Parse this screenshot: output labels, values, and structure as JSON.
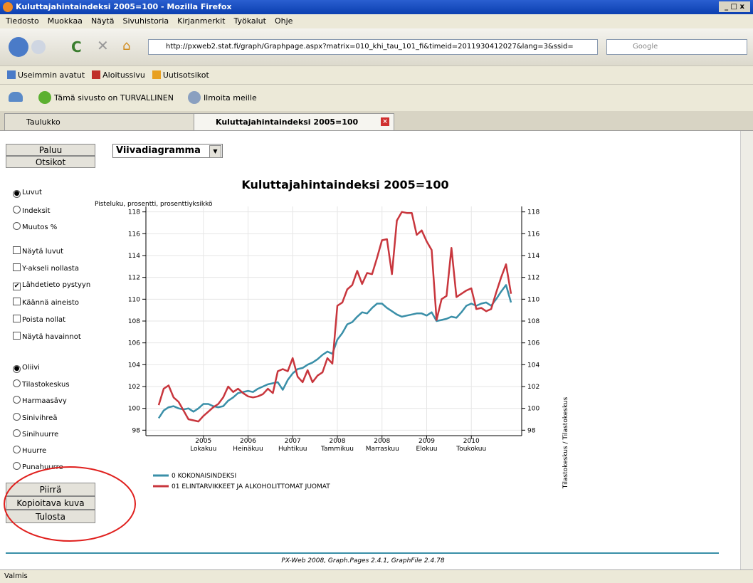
{
  "window": {
    "title": "Kuluttajahintaindeksi 2005=100 - Mozilla Firefox"
  },
  "menu": [
    "Tiedosto",
    "Muokkaa",
    "Näytä",
    "Sivuhistoria",
    "Kirjanmerkit",
    "Työkalut",
    "Ohje"
  ],
  "address": "http://pxweb2.stat.fi/graph/Graphpage.aspx?matrix=010_khi_tau_101_fi&timeid=2011930412027&lang=3&ssid=",
  "search_placeholder": "Google",
  "bookmarks": [
    "Useimmin avatut",
    "Aloitussivu",
    "Uutisotsikot"
  ],
  "toolbar": [
    "Tämä sivusto on TURVALLINEN",
    "Ilmoita meille"
  ],
  "tabs": [
    {
      "label": "Taulukko",
      "active": false
    },
    {
      "label": "Kuluttajahintaindeksi 2005=100",
      "active": true
    }
  ],
  "sidebar": {
    "top_buttons": [
      "Paluu",
      "Otsikot"
    ],
    "chart_type": "Viivadiagramma",
    "value_options": [
      {
        "label": "Luvut",
        "selected": true
      },
      {
        "label": "Indeksit",
        "selected": false
      },
      {
        "label": "Muutos %",
        "selected": false
      }
    ],
    "checkboxes": [
      {
        "label": "Näytä luvut",
        "checked": false
      },
      {
        "label": "Y-akseli nollasta",
        "checked": false
      },
      {
        "label": "Lähdetieto pystyyn",
        "checked": true
      },
      {
        "label": "Käännä aineisto",
        "checked": false
      },
      {
        "label": "Poista nollat",
        "checked": false
      },
      {
        "label": "Näytä havainnot",
        "checked": false
      }
    ],
    "color_options": [
      {
        "label": "Oliivi",
        "selected": true
      },
      {
        "label": "Tilastokeskus",
        "selected": false
      },
      {
        "label": "Harmaasävy",
        "selected": false
      },
      {
        "label": "Sinivihreä",
        "selected": false
      },
      {
        "label": "Sinihuurre",
        "selected": false
      },
      {
        "label": "Huurre",
        "selected": false
      },
      {
        "label": "Punahuurre",
        "selected": false
      }
    ],
    "bottom_buttons": [
      "Piirrä",
      "Kopioitava kuva",
      "Tulosta"
    ]
  },
  "chart_data": {
    "type": "line",
    "title": "Kuluttajahintaindeksi 2005=100",
    "y_label": "Pisteluku, prosentti, prosenttiyksikkö",
    "source_label": "Tilastokeskus / Tilastokeskus",
    "categories": [
      null,
      null,
      null,
      null,
      null,
      null,
      null,
      null,
      null,
      "2005 Lokakuu",
      null,
      null,
      null,
      null,
      null,
      null,
      null,
      null,
      "2006 Heinäkuu",
      null,
      null,
      null,
      null,
      null,
      null,
      null,
      null,
      "2007 Huhtikuu",
      null,
      null,
      null,
      null,
      null,
      null,
      null,
      null,
      "2008 Tammikuu",
      null,
      null,
      null,
      null,
      null,
      null,
      null,
      null,
      "2008 Marraskuu",
      null,
      null,
      null,
      null,
      null,
      null,
      null,
      null,
      "2009 Elokuu",
      null,
      null,
      null,
      null,
      null,
      null,
      null,
      null,
      "2010 Toukokuu",
      null,
      null,
      null,
      null,
      null,
      null,
      null,
      null
    ],
    "series": [
      {
        "name": "0 KOKONAISINDEKSI",
        "color": "#3a8fa8",
        "values": [
          99.1,
          99.8,
          100.1,
          100.2,
          100.0,
          99.9,
          100.0,
          99.7,
          100.0,
          100.4,
          100.4,
          100.2,
          100.1,
          100.2,
          100.7,
          101.0,
          101.4,
          101.5,
          101.6,
          101.5,
          101.8,
          102.0,
          102.2,
          102.3,
          102.4,
          101.7,
          102.6,
          103.2,
          103.6,
          103.7,
          104.0,
          104.2,
          104.5,
          104.9,
          105.2,
          105.0,
          106.3,
          106.9,
          107.7,
          107.9,
          108.4,
          108.8,
          108.7,
          109.2,
          109.6,
          109.6,
          109.2,
          108.9,
          108.6,
          108.4,
          108.5,
          108.6,
          108.7,
          108.7,
          108.5,
          108.8,
          108.0,
          108.1,
          108.2,
          108.4,
          108.3,
          108.8,
          109.4,
          109.6,
          109.4,
          109.6,
          109.7,
          109.4,
          110.0,
          110.7,
          111.3,
          109.7
        ]
      },
      {
        "name": "01 ELINTARVIKKEET JA ALKOHOLITTOMAT JUOMAT",
        "color": "#c8363d",
        "values": [
          100.3,
          101.8,
          102.1,
          101.0,
          100.6,
          99.8,
          99.0,
          98.9,
          98.8,
          99.3,
          99.7,
          100.1,
          100.4,
          101.0,
          102.0,
          101.5,
          101.8,
          101.4,
          101.1,
          101.0,
          101.1,
          101.3,
          101.8,
          101.4,
          103.4,
          103.6,
          103.4,
          104.6,
          102.9,
          102.4,
          103.5,
          102.4,
          103.0,
          103.3,
          104.6,
          104.1,
          109.4,
          109.7,
          110.9,
          111.3,
          112.6,
          111.4,
          112.4,
          112.3,
          113.8,
          115.4,
          115.5,
          112.3,
          117.2,
          118.0,
          117.9,
          117.9,
          115.9,
          116.3,
          115.3,
          114.5,
          108.1,
          110.0,
          110.3,
          114.7,
          110.2,
          110.5,
          110.8,
          111.0,
          109.1,
          109.2,
          108.9,
          109.1,
          110.6,
          112.0,
          113.2,
          110.5
        ]
      }
    ],
    "ylim": [
      97.5,
      118.5
    ],
    "yticks": [
      98,
      100,
      102,
      104,
      106,
      108,
      110,
      112,
      114,
      116,
      118
    ],
    "grid": true,
    "legend": "bottom-left"
  },
  "footer": "PX-Web 2008, Graph.Pages 2.4.1, GraphFile 2.4.78",
  "status": "Valmis"
}
